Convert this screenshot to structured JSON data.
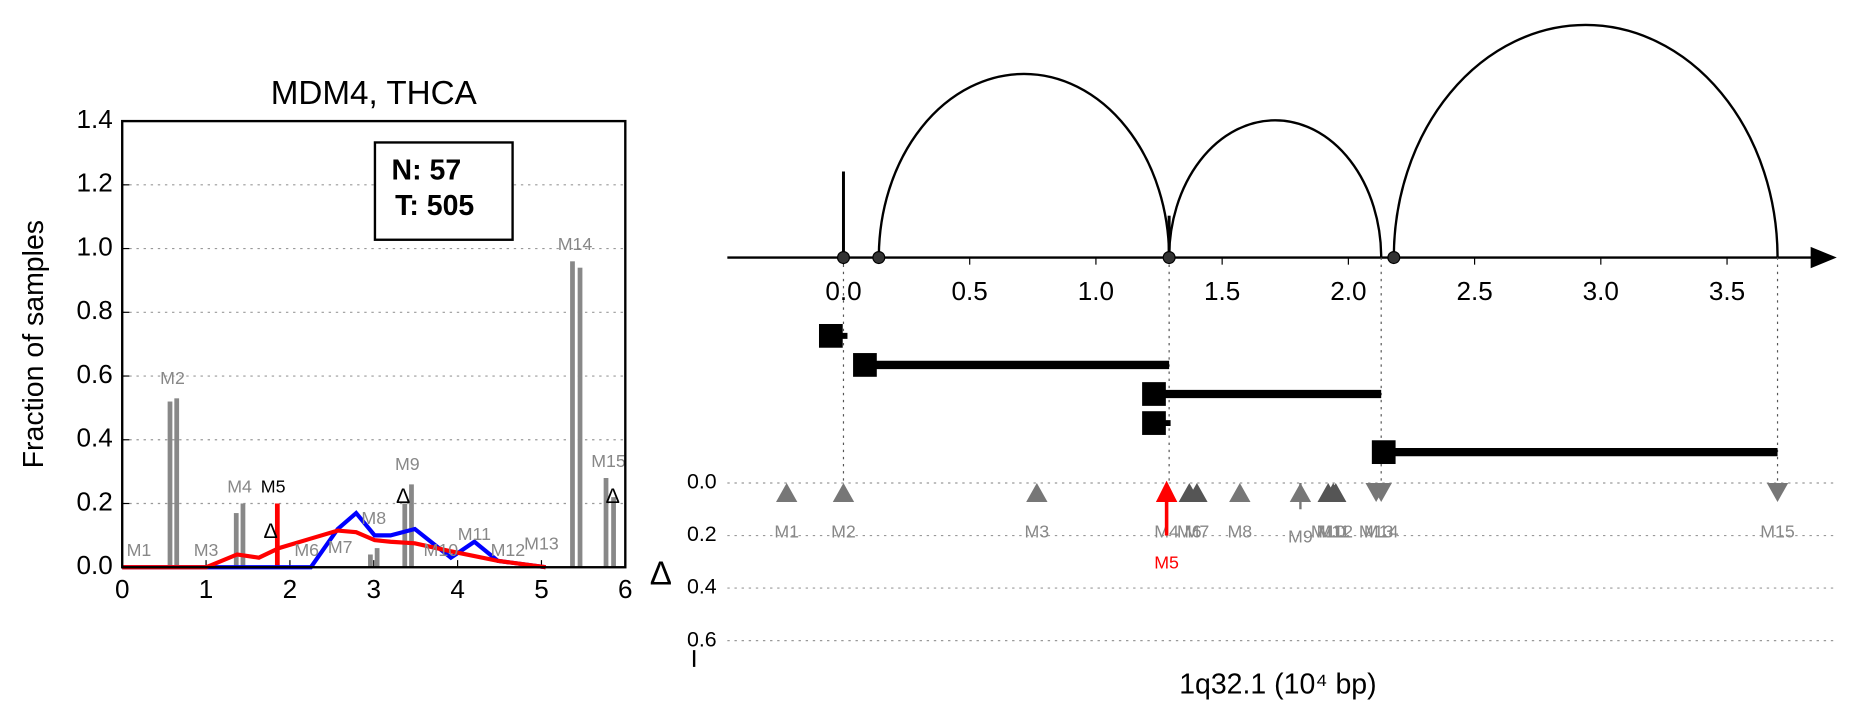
{
  "chart_data": [
    {
      "type": "bar_line",
      "title": "MDM4, THCA",
      "ylabel": "Fraction of samples",
      "xlim": [
        0,
        6
      ],
      "xticks": [
        0,
        1,
        2,
        3,
        4,
        5,
        6
      ],
      "ylim": [
        0,
        1.4
      ],
      "yticks": [
        {
          "value": 0,
          "label": "0.0"
        },
        {
          "value": 0.2,
          "label": "0.2"
        },
        {
          "value": 0.4,
          "label": "0.4"
        },
        {
          "value": 0.6,
          "label": "0.6"
        },
        {
          "value": 0.8,
          "label": "0.8"
        },
        {
          "value": 1.0,
          "label": "1.0"
        },
        {
          "value": 1.2,
          "label": "1.2"
        },
        {
          "value": 1.4,
          "label": "1.4"
        }
      ],
      "grid": true,
      "box_text": [
        "N: 57",
        "T: 505"
      ],
      "bars": {
        "x": [
          0.57,
          0.65,
          1.36,
          1.44,
          1.85,
          2.96,
          3.04,
          3.37,
          3.45,
          5.37,
          5.46,
          5.77,
          5.86
        ],
        "values": [
          0.52,
          0.53,
          0.17,
          0.2,
          0.2,
          0.04,
          0.06,
          0.2,
          0.26,
          0.96,
          0.94,
          0.28,
          0.22
        ],
        "colors": [
          "#888888",
          "#888888",
          "#888888",
          "#888888",
          "#ff0000",
          "#888888",
          "#888888",
          "#888888",
          "#888888",
          "#888888",
          "#888888",
          "#888888",
          "#888888"
        ]
      },
      "x": [
        0,
        1.0,
        1.37,
        1.63,
        1.87,
        2.25,
        2.57,
        2.79,
        3.01,
        3.2,
        3.49,
        3.92,
        4.2,
        4.48,
        5.05
      ],
      "series": [
        {
          "color": "#0000ff",
          "values": [
            0,
            0,
            0,
            0,
            0,
            0,
            0.12,
            0.17,
            0.1,
            0.1,
            0.12,
            0.03,
            0.08,
            0.02,
            0
          ]
        },
        {
          "color": "#ff0000",
          "values": [
            0,
            0,
            0.04,
            0.03,
            0.06,
            0.09,
            0.115,
            0.11,
            0.085,
            0.08,
            0.075,
            0.05,
            0.035,
            0.02,
            0
          ]
        }
      ],
      "marker_labels": [
        {
          "text": "M1",
          "x": 0.2,
          "y": 0.05,
          "color": "#888888"
        },
        {
          "text": "M2",
          "x": 0.6,
          "y": 0.59,
          "color": "#888888"
        },
        {
          "text": "M3",
          "x": 1.0,
          "y": 0.05,
          "color": "#888888"
        },
        {
          "text": "M4",
          "x": 1.4,
          "y": 0.25,
          "color": "#888888"
        },
        {
          "text": "M5",
          "x": 1.8,
          "y": 0.25,
          "color": "#000000"
        },
        {
          "text": "M6",
          "x": 2.2,
          "y": 0.05,
          "color": "#888888"
        },
        {
          "text": "M7",
          "x": 2.6,
          "y": 0.06,
          "color": "#888888"
        },
        {
          "text": "M8",
          "x": 3.0,
          "y": 0.15,
          "color": "#888888"
        },
        {
          "text": "M9",
          "x": 3.4,
          "y": 0.32,
          "color": "#888888"
        },
        {
          "text": "M10",
          "x": 3.8,
          "y": 0.05,
          "color": "#888888"
        },
        {
          "text": "M11",
          "x": 4.2,
          "y": 0.1,
          "color": "#888888"
        },
        {
          "text": "M12",
          "x": 4.6,
          "y": 0.05,
          "color": "#888888"
        },
        {
          "text": "M13",
          "x": 5.0,
          "y": 0.07,
          "color": "#888888"
        },
        {
          "text": "M14",
          "x": 5.4,
          "y": 1.01,
          "color": "#888888"
        },
        {
          "text": "M15",
          "x": 5.8,
          "y": 0.33,
          "color": "#888888"
        }
      ],
      "delta_marks": [
        {
          "text": "Δ",
          "x": 1.77,
          "y": 0.11
        },
        {
          "text": "Δ",
          "x": 3.35,
          "y": 0.22
        },
        {
          "text": "Δ",
          "x": 5.85,
          "y": 0.22
        }
      ]
    },
    {
      "type": "arc",
      "xlabel": "1q32.1 (10⁴ bp)",
      "xlim": [
        -0.46,
        3.85
      ],
      "xticks": [
        {
          "value": 0,
          "label": "0.0"
        },
        {
          "value": 0.5,
          "label": "0.5"
        },
        {
          "value": 1.0,
          "label": "1.0"
        },
        {
          "value": 1.5,
          "label": "1.5"
        },
        {
          "value": 2.0,
          "label": "2.0"
        },
        {
          "value": 2.5,
          "label": "2.5"
        },
        {
          "value": 3.0,
          "label": "3.0"
        },
        {
          "value": 3.5,
          "label": "3.5"
        }
      ],
      "spikes": [
        {
          "x": 0,
          "height": 0.37
        },
        {
          "x": 1.29,
          "height": 0.18
        }
      ],
      "arcs": [
        {
          "start": 0.14,
          "end": 1.29,
          "height": 0.79
        },
        {
          "start": 1.29,
          "end": 2.13,
          "height": 0.59
        },
        {
          "start": 2.18,
          "end": 3.7,
          "height": 1.0
        }
      ],
      "nodes": [
        0,
        0.14,
        1.29,
        2.18
      ],
      "breakpoints": [
        0,
        1.29,
        2.13,
        3.7
      ],
      "segments": [
        {
          "start": -0.05,
          "end": null
        },
        {
          "start": 0.085,
          "end": 1.29
        },
        {
          "start": 1.23,
          "end": 2.13
        },
        {
          "start": 1.23,
          "end": null
        },
        {
          "start": 2.14,
          "end": 3.7
        }
      ],
      "delta_panel": {
        "ylabel": "Δ",
        "ylim": [
          0,
          0.7
        ],
        "yticks": [
          {
            "value": 0,
            "label": "0.0"
          },
          {
            "value": 0.2,
            "label": "0.2"
          },
          {
            "value": 0.4,
            "label": "0.4"
          },
          {
            "value": 0.6,
            "label": "0.6"
          }
        ],
        "markers": [
          {
            "label": "M1",
            "x": -0.225,
            "delta": 0,
            "direction": "up",
            "color": "#777777"
          },
          {
            "label": "M2",
            "x": 0.0,
            "delta": 0,
            "direction": "up",
            "color": "#777777"
          },
          {
            "label": "M3",
            "x": 0.766,
            "delta": 0,
            "direction": "up",
            "color": "#777777"
          },
          {
            "label": "M4",
            "x": 1.28,
            "delta": 0,
            "direction": "up",
            "color": "#777777"
          },
          {
            "label": "M5",
            "x": 1.28,
            "delta": 0.2,
            "direction": "arrow",
            "color": "#ff0000"
          },
          {
            "label": "M6",
            "x": 1.37,
            "delta": 0,
            "direction": "up",
            "color": "#555555"
          },
          {
            "label": "M7",
            "x": 1.4,
            "delta": 0,
            "direction": "up",
            "color": "#555555"
          },
          {
            "label": "M8",
            "x": 1.57,
            "delta": 0,
            "direction": "up",
            "color": "#777777"
          },
          {
            "label": "M9",
            "x": 1.81,
            "delta": 0.1,
            "direction": "up",
            "color": "#777777"
          },
          {
            "label": "M10",
            "x": 1.92,
            "delta": 0,
            "direction": "up",
            "color": "#555555"
          },
          {
            "label": "M11",
            "x": 1.94,
            "delta": 0,
            "direction": "up",
            "color": "#555555"
          },
          {
            "label": "M12",
            "x": 1.95,
            "delta": 0,
            "direction": "up",
            "color": "#555555"
          },
          {
            "label": "M13",
            "x": 2.11,
            "delta": 0,
            "direction": "down",
            "color": "#777777"
          },
          {
            "label": "M14",
            "x": 2.13,
            "delta": 0,
            "direction": "down",
            "color": "#777777"
          },
          {
            "label": "M15",
            "x": 3.7,
            "delta": 0.06,
            "direction": "down",
            "color": "#777777"
          }
        ]
      }
    }
  ]
}
